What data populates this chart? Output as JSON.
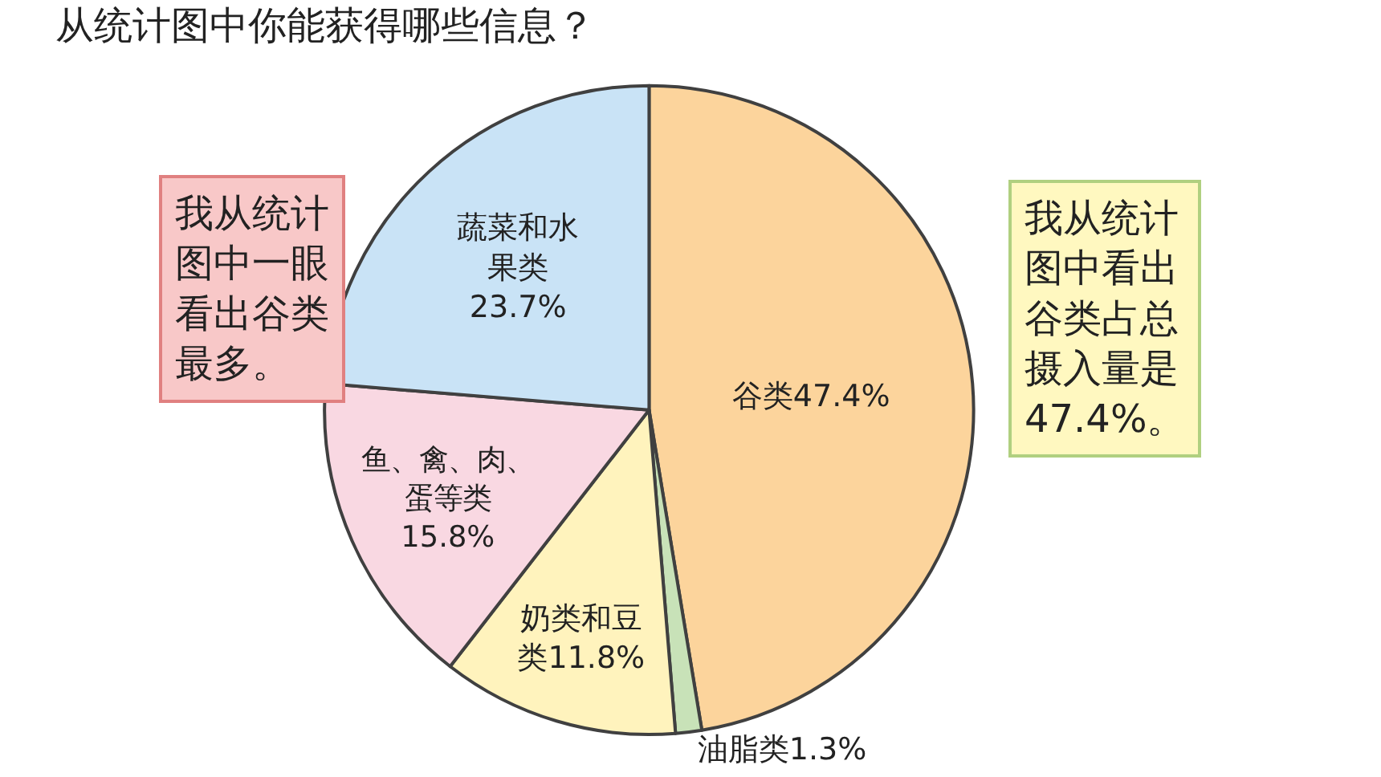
{
  "chart_data": {
    "type": "pie",
    "title": "从统计图中你能获得哪些信息？",
    "categories": [
      "谷类",
      "油脂类",
      "奶类和豆类",
      "鱼、禽、肉、蛋等类",
      "蔬菜和水果类"
    ],
    "values": [
      47.4,
      1.3,
      11.8,
      15.8,
      23.7
    ],
    "colors": [
      "#fcd49c",
      "#c8e2b8",
      "#fff3bd",
      "#f9d8e2",
      "#c9e3f6"
    ],
    "value_labels": [
      "47.4%",
      "1.3%",
      "11.8%",
      "15.8%",
      "23.7%"
    ],
    "annotations": [
      "我从统计图中一眼看出谷类最多。",
      "我从统计图中看出谷类占总摄入量是47.4%。"
    ],
    "legend": false
  }
}
